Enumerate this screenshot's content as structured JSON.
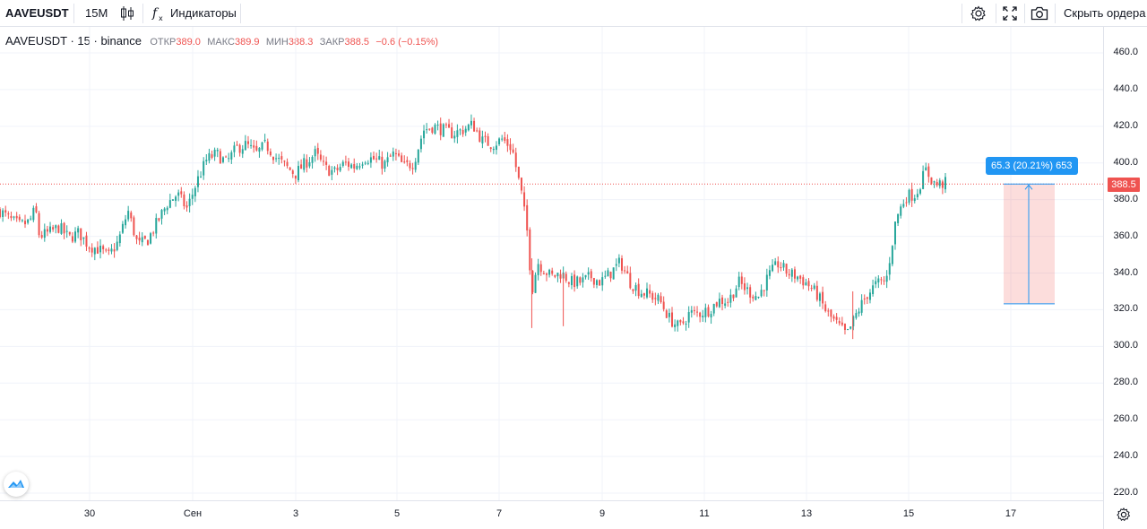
{
  "toolbar": {
    "symbol": "AAVEUSDT",
    "interval": "15М",
    "indicators_label": "Индикаторы",
    "hide_orders_label": "Скрыть ордера"
  },
  "legend": {
    "title": "AAVEUSDT · 15 · binance",
    "open_label": "ОТКР",
    "open_value": "389.0",
    "high_label": "МАКС",
    "high_value": "389.9",
    "low_label": "МИН",
    "low_value": "388.3",
    "close_label": "ЗАКР",
    "close_value": "388.5",
    "change": "−0.6 (−0.15%)"
  },
  "price_axis": {
    "ticks": [
      "460.0",
      "440.0",
      "420.0",
      "400.0",
      "380.0",
      "360.0",
      "340.0",
      "320.0",
      "300.0",
      "280.0",
      "260.0",
      "240.0",
      "220.0"
    ],
    "current_price": "388.5"
  },
  "time_axis": {
    "ticks": [
      "30",
      "Сен",
      "3",
      "5",
      "7",
      "9",
      "11",
      "13",
      "15",
      "17"
    ]
  },
  "measure": {
    "label": "65.3 (20.21%) 653",
    "from_price": 323.2,
    "to_price": 388.5
  },
  "colors": {
    "up": "#26a69a",
    "down": "#ef5350",
    "accent": "#2196f3",
    "grid": "#f0f3fa"
  },
  "icons": [
    "candles-icon",
    "fx-icon",
    "settings-icon",
    "fullscreen-icon",
    "camera-icon",
    "tradingview-logo-icon",
    "gear-icon"
  ],
  "chart_data": {
    "type": "candlestick",
    "x": [
      "30",
      "Сен",
      "3",
      "5",
      "7",
      "9",
      "11",
      "13",
      "15",
      "17"
    ],
    "close_path": [
      [
        0,
        374
      ],
      [
        0.5,
        369
      ],
      [
        1,
        366
      ],
      [
        1.5,
        368
      ],
      [
        1.8,
        375
      ],
      [
        2.0,
        360
      ],
      [
        2.5,
        362
      ],
      [
        3.0,
        365
      ],
      [
        3.5,
        359
      ],
      [
        4.0,
        362
      ],
      [
        4.5,
        355
      ],
      [
        5.0,
        353
      ],
      [
        5.5,
        349
      ],
      [
        6.0,
        357
      ],
      [
        6.5,
        374
      ],
      [
        7.0,
        355
      ],
      [
        7.5,
        358
      ],
      [
        8.0,
        368
      ],
      [
        8.5,
        378
      ],
      [
        9.0,
        383
      ],
      [
        9.5,
        375
      ],
      [
        10.0,
        390
      ],
      [
        10.5,
        402
      ],
      [
        11.0,
        405
      ],
      [
        11.5,
        400
      ],
      [
        12.0,
        408
      ],
      [
        12.5,
        410
      ],
      [
        13.0,
        405
      ],
      [
        13.5,
        410
      ],
      [
        14.0,
        403
      ],
      [
        14.5,
        398
      ],
      [
        15.0,
        394
      ],
      [
        15.5,
        400
      ],
      [
        16.0,
        405
      ],
      [
        16.5,
        397
      ],
      [
        17.0,
        395
      ],
      [
        17.5,
        400
      ],
      [
        18.0,
        398
      ],
      [
        18.5,
        403
      ],
      [
        19.0,
        402
      ],
      [
        19.5,
        399
      ],
      [
        20.0,
        405
      ],
      [
        20.5,
        398
      ],
      [
        21.0,
        400
      ],
      [
        21.5,
        418
      ],
      [
        22.0,
        420
      ],
      [
        22.5,
        418
      ],
      [
        23.0,
        416
      ],
      [
        23.5,
        418
      ],
      [
        24.0,
        421
      ],
      [
        24.5,
        412
      ],
      [
        25.0,
        410
      ],
      [
        25.5,
        413
      ],
      [
        26.0,
        408
      ],
      [
        26.5,
        382
      ],
      [
        26.8,
        360
      ],
      [
        27.0,
        330
      ],
      [
        27.3,
        346
      ],
      [
        27.6,
        342
      ],
      [
        28.0,
        338
      ],
      [
        28.5,
        340
      ],
      [
        29.0,
        335
      ],
      [
        29.5,
        335
      ],
      [
        30.0,
        338
      ],
      [
        30.5,
        335
      ],
      [
        31.0,
        340
      ],
      [
        31.5,
        346
      ],
      [
        32.0,
        335
      ],
      [
        32.5,
        330
      ],
      [
        33.0,
        328
      ],
      [
        33.5,
        325
      ],
      [
        34.0,
        315
      ],
      [
        34.5,
        310
      ],
      [
        35.0,
        318
      ],
      [
        35.5,
        318
      ],
      [
        36.0,
        320
      ],
      [
        36.5,
        325
      ],
      [
        37.0,
        325
      ],
      [
        37.5,
        335
      ],
      [
        38.0,
        330
      ],
      [
        38.5,
        327
      ],
      [
        39.0,
        338
      ],
      [
        39.5,
        345
      ],
      [
        40.0,
        340
      ],
      [
        40.5,
        338
      ],
      [
        41.0,
        334
      ],
      [
        41.5,
        328
      ],
      [
        42.0,
        318
      ],
      [
        42.5,
        312
      ],
      [
        43.0,
        306
      ],
      [
        43.5,
        318
      ],
      [
        44.0,
        328
      ],
      [
        44.5,
        334
      ],
      [
        45.0,
        336
      ],
      [
        45.5,
        370
      ],
      [
        46.0,
        382
      ],
      [
        46.5,
        383
      ],
      [
        47.0,
        396
      ],
      [
        47.5,
        388
      ],
      [
        48.0,
        389
      ]
    ],
    "ylim": [
      210,
      470
    ],
    "current_price": 388.5
  }
}
